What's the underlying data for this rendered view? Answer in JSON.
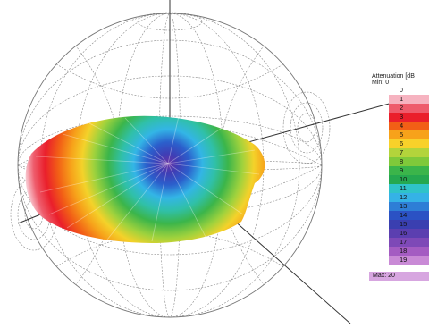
{
  "legend": {
    "title": "Attenuation [dB",
    "min_label": "Min:",
    "min_value": "0",
    "max_label": "Max:",
    "max_value": "20",
    "zero_label": "0",
    "levels": [
      {
        "label": "1",
        "color": "#f6b3c0"
      },
      {
        "label": "2",
        "color": "#ee5c6c"
      },
      {
        "label": "3",
        "color": "#ea1f2b"
      },
      {
        "label": "4",
        "color": "#f25f16"
      },
      {
        "label": "5",
        "color": "#f7a21a"
      },
      {
        "label": "6",
        "color": "#f8d12a"
      },
      {
        "label": "7",
        "color": "#b3d43b"
      },
      {
        "label": "8",
        "color": "#7fc93a"
      },
      {
        "label": "9",
        "color": "#3bb54a"
      },
      {
        "label": "10",
        "color": "#25a84f"
      },
      {
        "label": "11",
        "color": "#2fc3c8"
      },
      {
        "label": "12",
        "color": "#35b2e6"
      },
      {
        "label": "13",
        "color": "#2e7ed6"
      },
      {
        "label": "14",
        "color": "#2b52c4"
      },
      {
        "label": "15",
        "color": "#3a3fb0"
      },
      {
        "label": "16",
        "color": "#5b3fb0"
      },
      {
        "label": "17",
        "color": "#7e49b7"
      },
      {
        "label": "18",
        "color": "#a45cc2"
      },
      {
        "label": "19",
        "color": "#c98ad6"
      }
    ]
  }
}
